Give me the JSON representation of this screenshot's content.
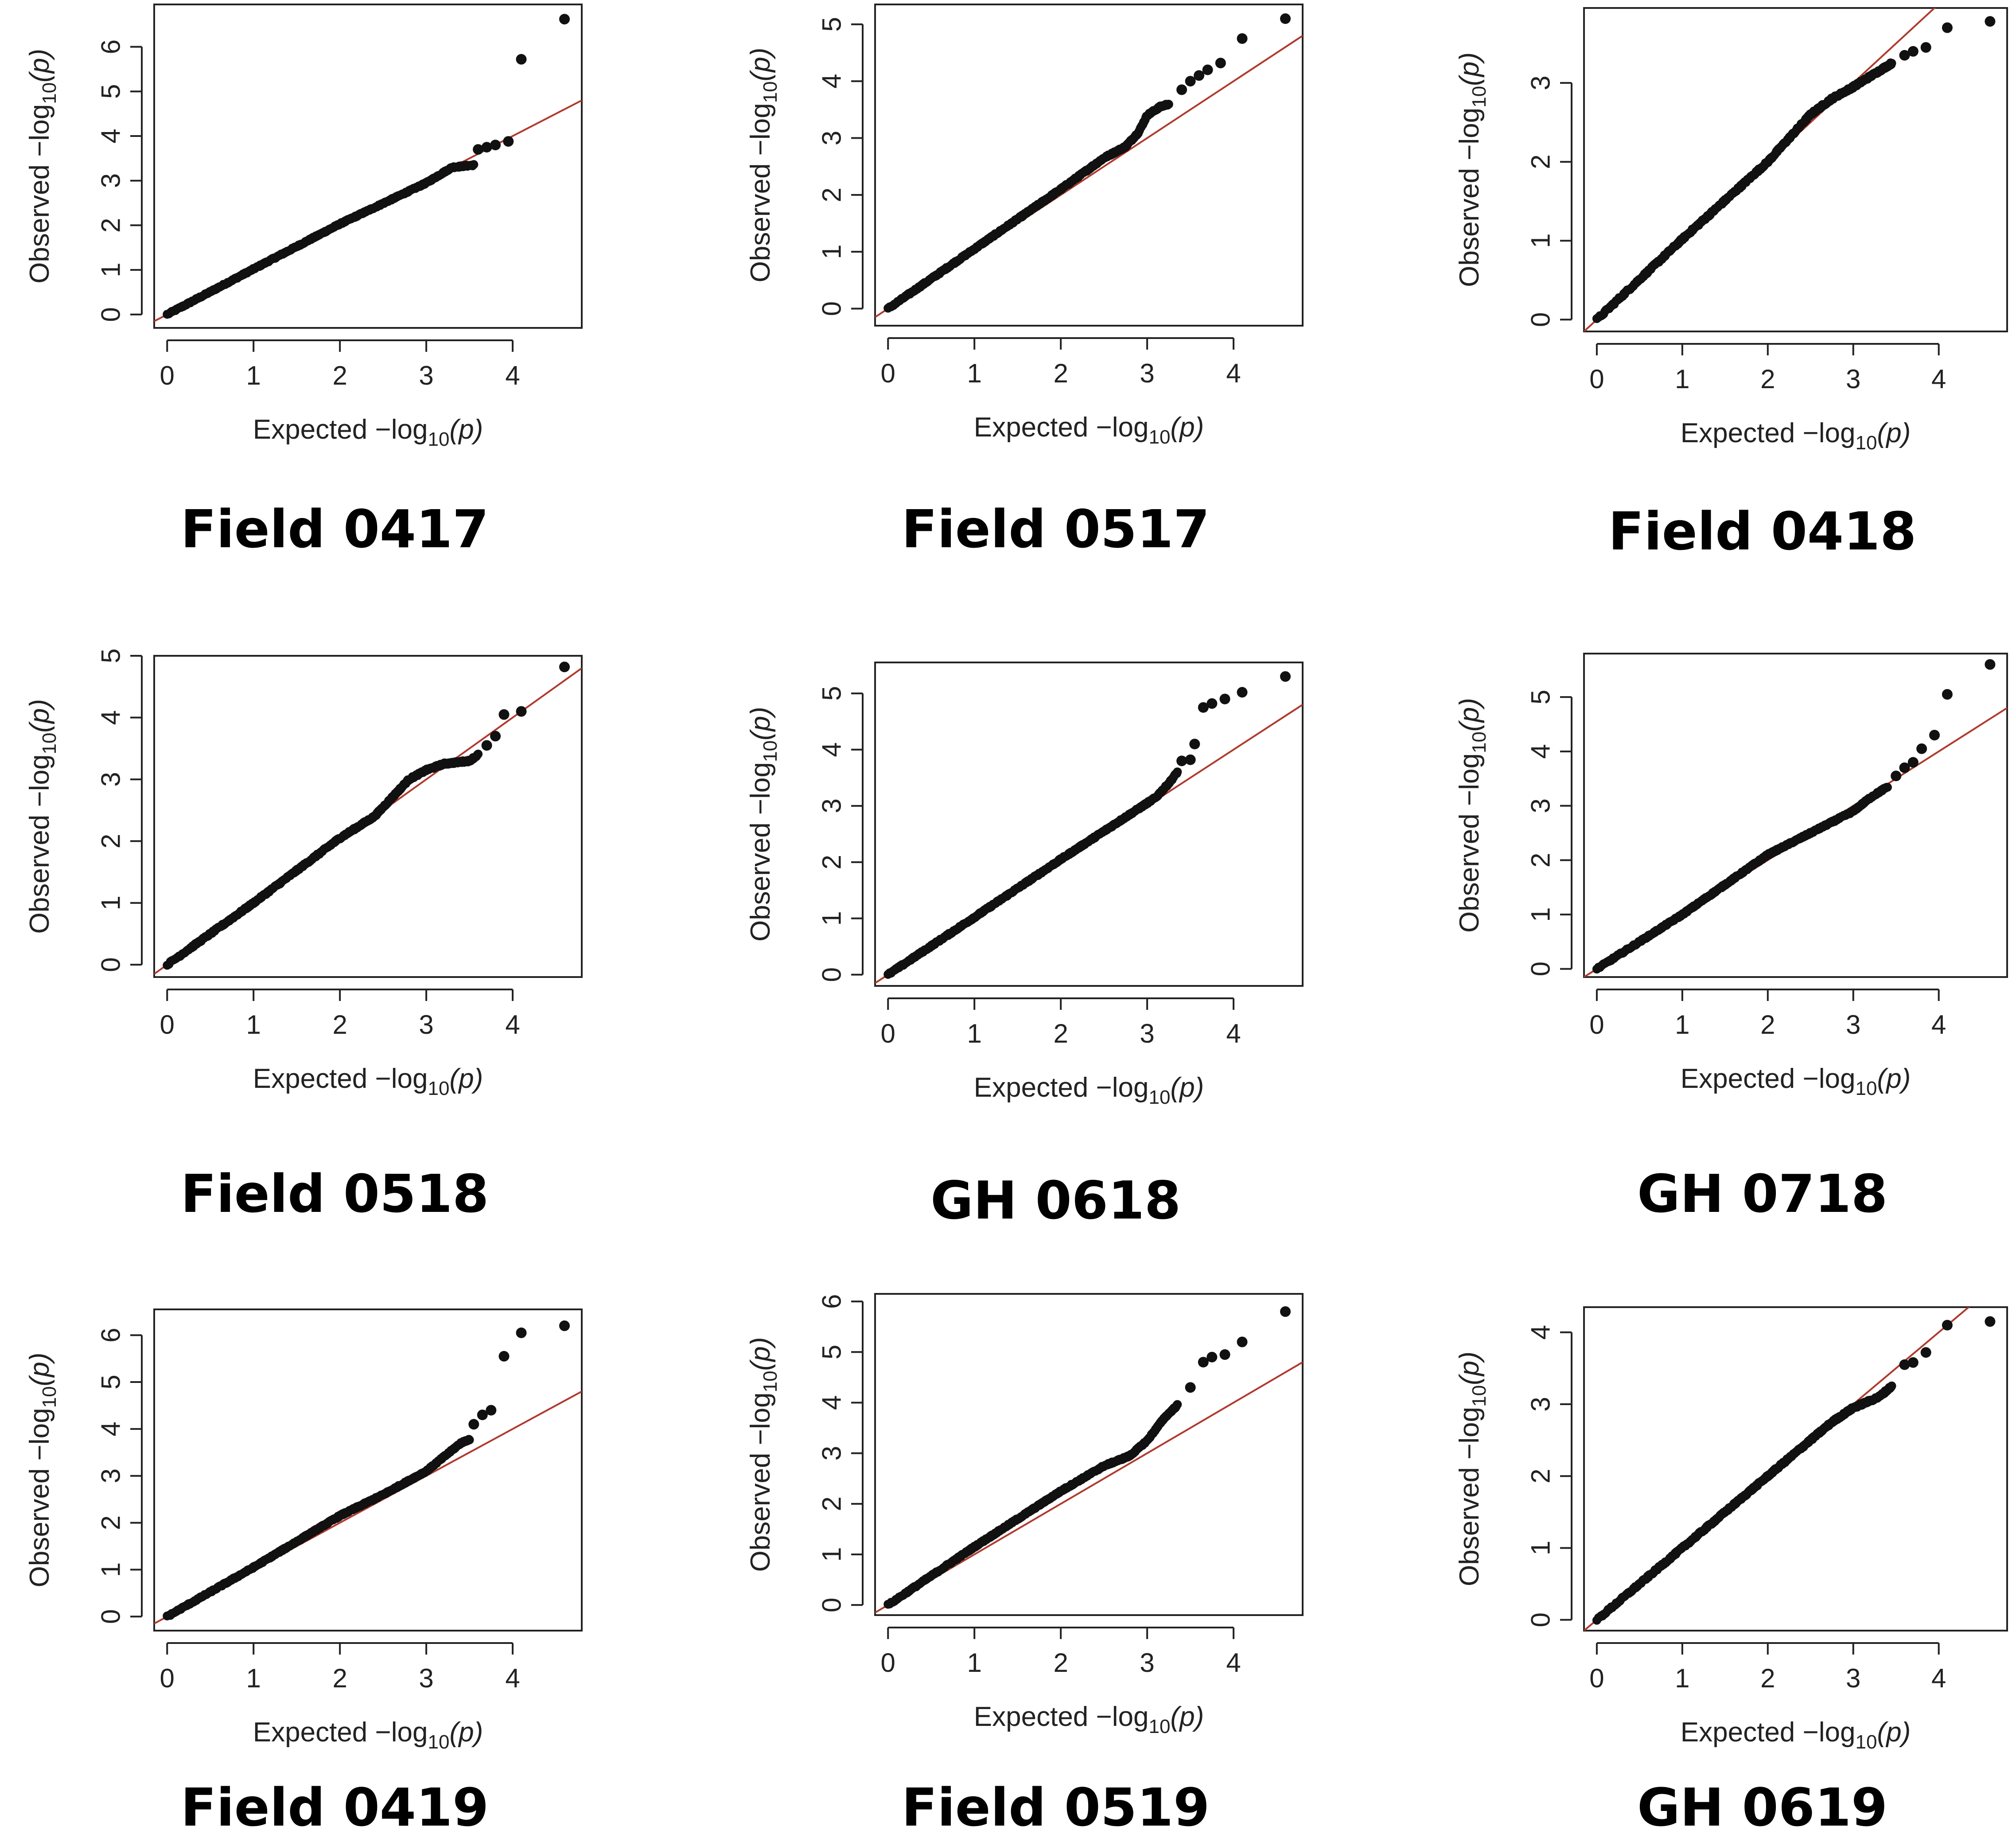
{
  "figure": {
    "description_type": "grid of QQ plots",
    "axis_labels": {
      "x_prefix": "Expected",
      "y_prefix": "Observed",
      "minus_log": "−log",
      "subscript": "10",
      "open_paren": "(",
      "p": "p",
      "close_paren": ")"
    }
  },
  "colors": {
    "points": "#111111",
    "reference_line": "#b03a2e",
    "frame": "#222222"
  },
  "chart_data": [
    {
      "type": "scatter",
      "title": "Field 0417",
      "xlabel": "Expected −log10(p)",
      "ylabel": "Observed −log10(p)",
      "xlim": [
        -0.15,
        4.8
      ],
      "ylim": [
        -0.3,
        6.95
      ],
      "xticks": [
        0,
        1,
        2,
        3,
        4
      ],
      "yticks": [
        0,
        1,
        2,
        3,
        4,
        5,
        6
      ],
      "ref_line_end": [
        4.8,
        4.8
      ],
      "curve": [
        [
          0,
          0
        ],
        [
          1,
          1.02
        ],
        [
          2,
          2.03
        ],
        [
          3,
          2.95
        ],
        [
          3.3,
          3.3
        ],
        [
          3.55,
          3.35
        ]
      ],
      "points": [
        [
          3.6,
          3.7
        ],
        [
          3.7,
          3.75
        ],
        [
          3.8,
          3.8
        ],
        [
          3.95,
          3.88
        ],
        [
          4.1,
          5.72
        ],
        [
          4.6,
          6.62
        ]
      ]
    },
    {
      "type": "scatter",
      "title": "Field 0517",
      "xlabel": "Expected −log10(p)",
      "ylabel": "Observed −log10(p)",
      "xlim": [
        -0.15,
        4.8
      ],
      "ylim": [
        -0.3,
        5.35
      ],
      "xticks": [
        0,
        1,
        2,
        3,
        4
      ],
      "yticks": [
        0,
        1,
        2,
        3,
        4,
        5
      ],
      "ref_line_end": [
        4.8,
        4.8
      ],
      "curve": [
        [
          0,
          0
        ],
        [
          1,
          1.05
        ],
        [
          2,
          2.1
        ],
        [
          2.5,
          2.65
        ],
        [
          2.75,
          2.85
        ],
        [
          2.9,
          3.1
        ],
        [
          3.0,
          3.4
        ],
        [
          3.15,
          3.55
        ],
        [
          3.25,
          3.6
        ]
      ],
      "points": [
        [
          3.4,
          3.85
        ],
        [
          3.5,
          4.0
        ],
        [
          3.6,
          4.1
        ],
        [
          3.7,
          4.2
        ],
        [
          3.85,
          4.32
        ],
        [
          4.1,
          4.75
        ],
        [
          4.6,
          5.1
        ]
      ]
    },
    {
      "type": "scatter",
      "title": "Field 0418",
      "xlabel": "Expected −log10(p)",
      "ylabel": "Observed −log10(p)",
      "xlim": [
        -0.15,
        4.8
      ],
      "ylim": [
        -0.15,
        3.95
      ],
      "xticks": [
        0,
        1,
        2,
        3,
        4
      ],
      "yticks": [
        0,
        1,
        2,
        3
      ],
      "ref_line_end": [
        4.8,
        4.8
      ],
      "curve": [
        [
          0,
          0
        ],
        [
          1,
          1.02
        ],
        [
          2,
          2.0
        ],
        [
          2.5,
          2.6
        ],
        [
          2.75,
          2.8
        ],
        [
          3.0,
          2.95
        ],
        [
          3.3,
          3.15
        ],
        [
          3.45,
          3.25
        ]
      ],
      "points": [
        [
          3.6,
          3.35
        ],
        [
          3.7,
          3.4
        ],
        [
          3.85,
          3.45
        ],
        [
          4.1,
          3.7
        ],
        [
          4.6,
          3.78
        ]
      ]
    },
    {
      "type": "scatter",
      "title": "Field 0518",
      "xlabel": "Expected −log10(p)",
      "ylabel": "Observed −log10(p)",
      "xlim": [
        -0.15,
        4.8
      ],
      "ylim": [
        -0.2,
        5.0
      ],
      "xticks": [
        0,
        1,
        2,
        3,
        4
      ],
      "yticks": [
        0,
        1,
        2,
        3,
        4,
        5
      ],
      "ref_line_end": [
        4.8,
        4.8
      ],
      "curve": [
        [
          0,
          0
        ],
        [
          1,
          1.0
        ],
        [
          2,
          2.05
        ],
        [
          2.4,
          2.4
        ],
        [
          2.6,
          2.7
        ],
        [
          2.8,
          3.0
        ],
        [
          3.0,
          3.15
        ],
        [
          3.2,
          3.25
        ],
        [
          3.5,
          3.3
        ],
        [
          3.6,
          3.4
        ]
      ],
      "points": [
        [
          3.7,
          3.55
        ],
        [
          3.8,
          3.7
        ],
        [
          3.9,
          4.05
        ],
        [
          4.1,
          4.1
        ],
        [
          4.6,
          4.82
        ]
      ]
    },
    {
      "type": "scatter",
      "title": "GH 0618",
      "xlabel": "Expected −log10(p)",
      "ylabel": "Observed −log10(p)",
      "xlim": [
        -0.15,
        4.8
      ],
      "ylim": [
        -0.2,
        5.55
      ],
      "xticks": [
        0,
        1,
        2,
        3,
        4
      ],
      "yticks": [
        0,
        1,
        2,
        3,
        4,
        5
      ],
      "ref_line_end": [
        4.8,
        4.8
      ],
      "curve": [
        [
          0,
          0
        ],
        [
          1,
          1.02
        ],
        [
          2,
          2.05
        ],
        [
          2.8,
          2.85
        ],
        [
          3.1,
          3.15
        ],
        [
          3.25,
          3.4
        ],
        [
          3.35,
          3.6
        ]
      ],
      "points": [
        [
          3.4,
          3.8
        ],
        [
          3.5,
          3.82
        ],
        [
          3.55,
          4.1
        ],
        [
          3.65,
          4.75
        ],
        [
          3.75,
          4.82
        ],
        [
          3.9,
          4.9
        ],
        [
          4.1,
          5.02
        ],
        [
          4.6,
          5.3
        ]
      ]
    },
    {
      "type": "scatter",
      "title": "GH 0718",
      "xlabel": "Expected −log10(p)",
      "ylabel": "Observed −log10(p)",
      "xlim": [
        -0.15,
        4.8
      ],
      "ylim": [
        -0.15,
        5.8
      ],
      "xticks": [
        0,
        1,
        2,
        3,
        4
      ],
      "yticks": [
        0,
        1,
        2,
        3,
        4,
        5
      ],
      "ref_line_end": [
        4.8,
        4.8
      ],
      "curve": [
        [
          0,
          0
        ],
        [
          1,
          1.0
        ],
        [
          2,
          2.1
        ],
        [
          2.5,
          2.5
        ],
        [
          3.0,
          2.9
        ],
        [
          3.2,
          3.15
        ],
        [
          3.4,
          3.35
        ]
      ],
      "points": [
        [
          3.5,
          3.55
        ],
        [
          3.6,
          3.7
        ],
        [
          3.7,
          3.8
        ],
        [
          3.8,
          4.05
        ],
        [
          3.95,
          4.3
        ],
        [
          4.1,
          5.05
        ],
        [
          4.6,
          5.6
        ]
      ]
    },
    {
      "type": "scatter",
      "title": "Field 0419",
      "xlabel": "Expected −log10(p)",
      "ylabel": "Observed −log10(p)",
      "xlim": [
        -0.15,
        4.8
      ],
      "ylim": [
        -0.3,
        6.55
      ],
      "xticks": [
        0,
        1,
        2,
        3,
        4
      ],
      "yticks": [
        0,
        1,
        2,
        3,
        4,
        5,
        6
      ],
      "ref_line_end": [
        4.8,
        4.8
      ],
      "curve": [
        [
          0,
          0
        ],
        [
          1,
          1.05
        ],
        [
          2,
          2.15
        ],
        [
          2.5,
          2.6
        ],
        [
          3.0,
          3.1
        ],
        [
          3.2,
          3.4
        ],
        [
          3.4,
          3.7
        ],
        [
          3.5,
          3.78
        ]
      ],
      "points": [
        [
          3.55,
          4.1
        ],
        [
          3.65,
          4.3
        ],
        [
          3.75,
          4.4
        ],
        [
          3.9,
          5.55
        ],
        [
          4.1,
          6.05
        ],
        [
          4.6,
          6.2
        ]
      ]
    },
    {
      "type": "scatter",
      "title": "Field 0519",
      "xlabel": "Expected −log10(p)",
      "ylabel": "Observed −log10(p)",
      "xlim": [
        -0.15,
        4.8
      ],
      "ylim": [
        -0.2,
        6.15
      ],
      "xticks": [
        0,
        1,
        2,
        3,
        4
      ],
      "yticks": [
        0,
        1,
        2,
        3,
        4,
        5,
        6
      ],
      "ref_line_end": [
        4.8,
        4.8
      ],
      "curve": [
        [
          0,
          0
        ],
        [
          1,
          1.15
        ],
        [
          2,
          2.25
        ],
        [
          2.5,
          2.75
        ],
        [
          2.8,
          2.95
        ],
        [
          3.0,
          3.25
        ],
        [
          3.2,
          3.7
        ],
        [
          3.35,
          3.95
        ]
      ],
      "points": [
        [
          3.5,
          4.3
        ],
        [
          3.65,
          4.8
        ],
        [
          3.75,
          4.9
        ],
        [
          3.9,
          4.95
        ],
        [
          4.1,
          5.2
        ],
        [
          4.6,
          5.8
        ]
      ]
    },
    {
      "type": "scatter",
      "title": "GH 0619",
      "xlabel": "Expected −log10(p)",
      "ylabel": "Observed −log10(p)",
      "xlim": [
        -0.15,
        4.8
      ],
      "ylim": [
        -0.15,
        4.35
      ],
      "xticks": [
        0,
        1,
        2,
        3,
        4
      ],
      "yticks": [
        0,
        1,
        2,
        3,
        4
      ],
      "ref_line_end": [
        4.8,
        4.8
      ],
      "curve": [
        [
          0,
          0
        ],
        [
          1,
          1.0
        ],
        [
          2,
          2.0
        ],
        [
          2.5,
          2.5
        ],
        [
          2.75,
          2.75
        ],
        [
          3.0,
          2.95
        ],
        [
          3.3,
          3.1
        ],
        [
          3.45,
          3.25
        ]
      ],
      "points": [
        [
          3.6,
          3.55
        ],
        [
          3.7,
          3.58
        ],
        [
          3.85,
          3.72
        ],
        [
          4.1,
          4.1
        ],
        [
          4.6,
          4.15
        ]
      ]
    }
  ]
}
